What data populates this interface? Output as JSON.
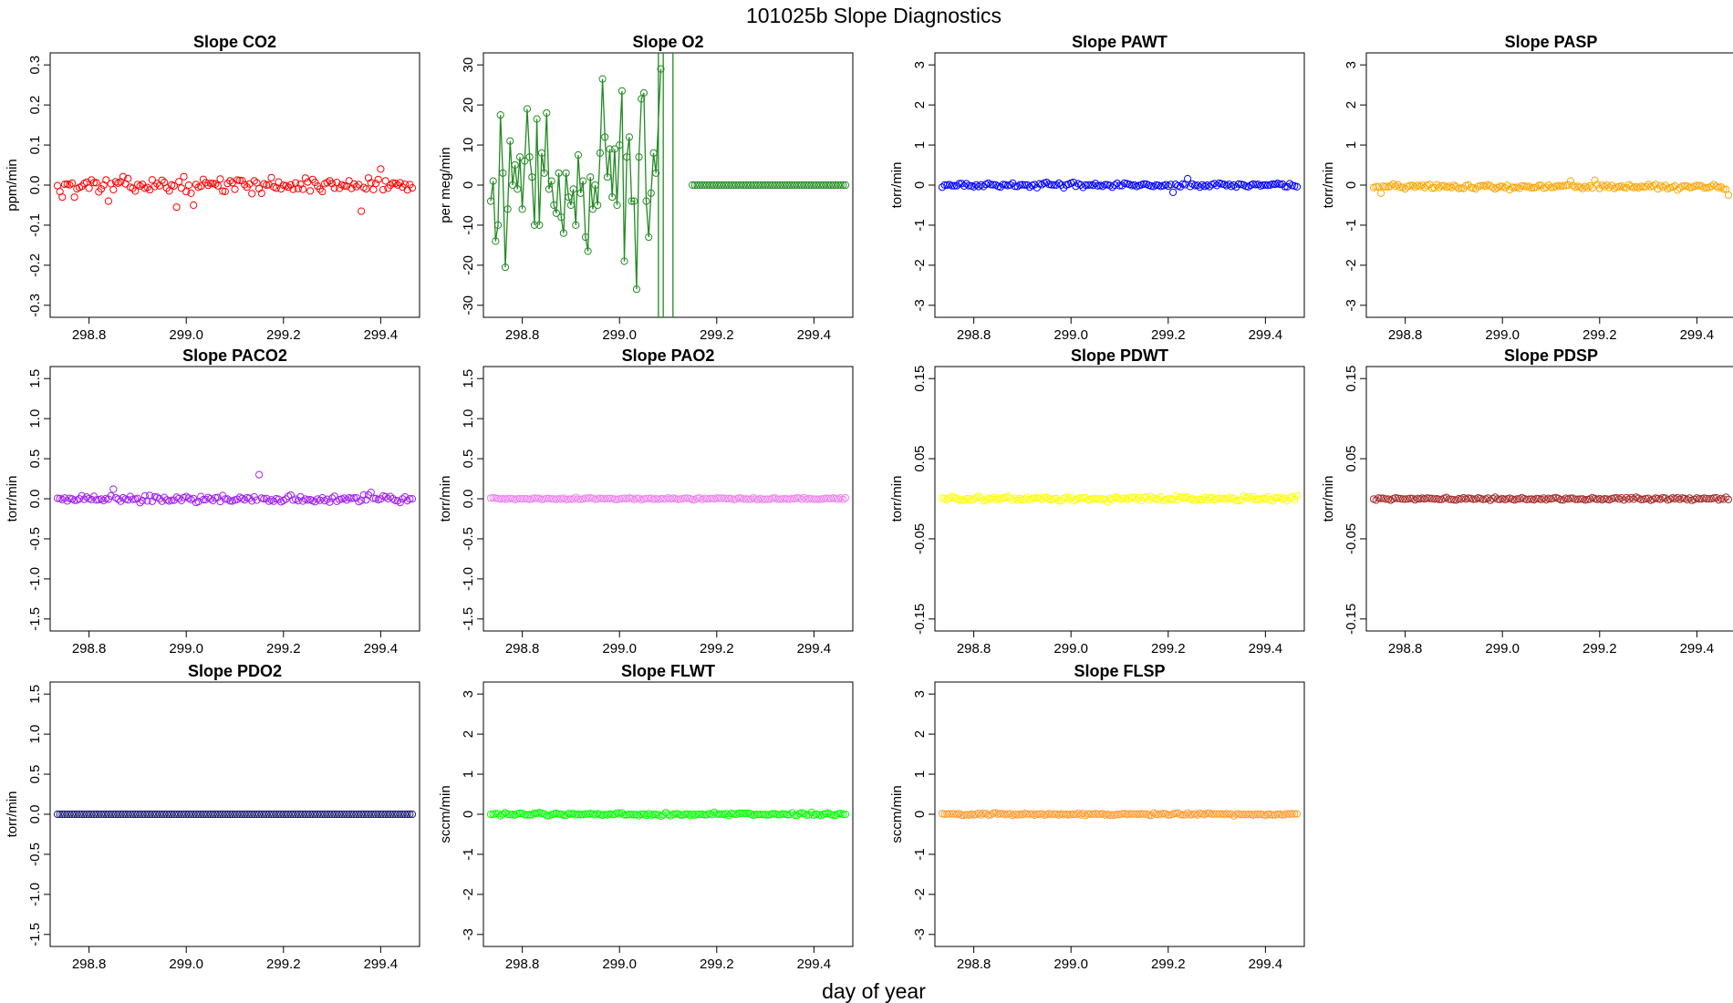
{
  "figure": {
    "title": "101025b   Slope Diagnostics",
    "xlabel": "day of year"
  },
  "chart_data": [
    {
      "type": "scatter",
      "title": "Slope CO2",
      "ylabel": "ppm/min",
      "color": "#ff0000",
      "xlim": [
        298.72,
        299.48
      ],
      "ylim": [
        -0.33,
        0.33
      ],
      "xticks": [
        298.8,
        299.0,
        299.2,
        299.4
      ],
      "xtick_labels": [
        "298.8",
        "299.0",
        "299.2",
        "299.4"
      ],
      "yticks": [
        -0.3,
        -0.2,
        -0.1,
        0.0,
        0.1,
        0.2,
        0.3
      ],
      "ytick_labels": [
        "-0.3",
        "-0.2",
        "-0.1",
        "0.0",
        "0.1",
        "0.2",
        "0.3"
      ],
      "x_start": 298.735,
      "x_step": 0.005,
      "center": 0.0,
      "noise": 0.014,
      "connect": false,
      "outliers": [
        {
          "x": 298.745,
          "y": -0.03
        },
        {
          "x": 298.77,
          "y": -0.03
        },
        {
          "x": 298.84,
          "y": -0.04
        },
        {
          "x": 298.98,
          "y": -0.055
        },
        {
          "x": 299.015,
          "y": -0.05
        },
        {
          "x": 299.36,
          "y": -0.065
        },
        {
          "x": 299.4,
          "y": 0.04
        }
      ]
    },
    {
      "type": "line+scatter",
      "title": "Slope O2",
      "ylabel": "per meg/min",
      "color": "#228b22",
      "xlim": [
        298.72,
        299.48
      ],
      "ylim": [
        -33,
        33
      ],
      "xticks": [
        298.8,
        299.0,
        299.2,
        299.4
      ],
      "xtick_labels": [
        "298.8",
        "299.0",
        "299.2",
        "299.4"
      ],
      "yticks": [
        -30,
        -20,
        -10,
        0,
        10,
        20,
        30
      ],
      "ytick_labels": [
        "-30",
        "-20",
        "-10",
        "0",
        "10",
        "20",
        "30"
      ],
      "x_start": 298.735,
      "x_step": 0.005,
      "center": 0.0,
      "noise": 0.0,
      "connect": true,
      "custom_points": [
        {
          "x": 298.735,
          "y": -4
        },
        {
          "x": 298.74,
          "y": 1
        },
        {
          "x": 298.745,
          "y": -14
        },
        {
          "x": 298.75,
          "y": -10
        },
        {
          "x": 298.755,
          "y": 17.5
        },
        {
          "x": 298.76,
          "y": 3
        },
        {
          "x": 298.765,
          "y": -20.5
        },
        {
          "x": 298.77,
          "y": -6
        },
        {
          "x": 298.775,
          "y": 11
        },
        {
          "x": 298.78,
          "y": 0
        },
        {
          "x": 298.785,
          "y": 5
        },
        {
          "x": 298.79,
          "y": -1
        },
        {
          "x": 298.795,
          "y": 7
        },
        {
          "x": 298.8,
          "y": -6
        },
        {
          "x": 298.805,
          "y": 6
        },
        {
          "x": 298.81,
          "y": 19
        },
        {
          "x": 298.815,
          "y": 7
        },
        {
          "x": 298.82,
          "y": 2
        },
        {
          "x": 298.825,
          "y": -10
        },
        {
          "x": 298.83,
          "y": 16.5
        },
        {
          "x": 298.835,
          "y": -10
        },
        {
          "x": 298.84,
          "y": 8
        },
        {
          "x": 298.845,
          "y": 3
        },
        {
          "x": 298.85,
          "y": 18
        },
        {
          "x": 298.855,
          "y": -1
        },
        {
          "x": 298.86,
          "y": 1
        },
        {
          "x": 298.865,
          "y": -5
        },
        {
          "x": 298.87,
          "y": -7
        },
        {
          "x": 298.875,
          "y": 3
        },
        {
          "x": 298.88,
          "y": -8
        },
        {
          "x": 298.885,
          "y": -12
        },
        {
          "x": 298.89,
          "y": 3
        },
        {
          "x": 298.895,
          "y": -3
        },
        {
          "x": 298.9,
          "y": -5
        },
        {
          "x": 298.905,
          "y": -1
        },
        {
          "x": 298.91,
          "y": -10
        },
        {
          "x": 298.915,
          "y": 7.5
        },
        {
          "x": 298.92,
          "y": -2
        },
        {
          "x": 298.925,
          "y": 1
        },
        {
          "x": 298.93,
          "y": -13
        },
        {
          "x": 298.935,
          "y": -16.5
        },
        {
          "x": 298.94,
          "y": 2
        },
        {
          "x": 298.945,
          "y": -6
        },
        {
          "x": 298.95,
          "y": 0
        },
        {
          "x": 298.955,
          "y": -5
        },
        {
          "x": 298.96,
          "y": 8
        },
        {
          "x": 298.965,
          "y": 26.5
        },
        {
          "x": 298.97,
          "y": 12
        },
        {
          "x": 298.975,
          "y": 2
        },
        {
          "x": 298.98,
          "y": 9
        },
        {
          "x": 298.985,
          "y": -3
        },
        {
          "x": 298.99,
          "y": 9
        },
        {
          "x": 298.995,
          "y": -5
        },
        {
          "x": 299.0,
          "y": 10
        },
        {
          "x": 299.005,
          "y": 23.5
        },
        {
          "x": 299.01,
          "y": -19
        },
        {
          "x": 299.015,
          "y": 7
        },
        {
          "x": 299.02,
          "y": 12
        },
        {
          "x": 299.025,
          "y": -4
        },
        {
          "x": 299.03,
          "y": -4
        },
        {
          "x": 299.035,
          "y": -26
        },
        {
          "x": 299.04,
          "y": 7
        },
        {
          "x": 299.045,
          "y": 21.5
        },
        {
          "x": 299.05,
          "y": 23
        },
        {
          "x": 299.055,
          "y": -4
        },
        {
          "x": 299.06,
          "y": -13
        },
        {
          "x": 299.065,
          "y": -2
        },
        {
          "x": 299.07,
          "y": 8
        },
        {
          "x": 299.075,
          "y": 3
        },
        {
          "x": 299.085,
          "y": 29
        }
      ],
      "extra_lines": [
        [
          299.08,
          -33,
          299.08,
          33
        ],
        [
          299.09,
          -33,
          299.09,
          33
        ],
        [
          299.11,
          -33,
          299.11,
          33
        ]
      ],
      "flat_from": 299.15,
      "flat_value": 0.0
    },
    {
      "type": "scatter",
      "title": "Slope PAWT",
      "ylabel": "torr/min",
      "color": "#0000ff",
      "xlim": [
        298.72,
        299.48
      ],
      "ylim": [
        -3.3,
        3.3
      ],
      "xticks": [
        298.8,
        299.0,
        299.2,
        299.4
      ],
      "xtick_labels": [
        "298.8",
        "299.0",
        "299.2",
        "299.4"
      ],
      "yticks": [
        -3,
        -2,
        -1,
        0,
        1,
        2,
        3
      ],
      "ytick_labels": [
        "-3",
        "-2",
        "-1",
        "0",
        "1",
        "2",
        "3"
      ],
      "x_start": 298.735,
      "x_step": 0.005,
      "center": 0.0,
      "noise": 0.045,
      "connect": false,
      "outliers": [
        {
          "x": 299.21,
          "y": -0.18
        },
        {
          "x": 299.24,
          "y": 0.16
        }
      ]
    },
    {
      "type": "scatter",
      "title": "Slope PASP",
      "ylabel": "torr/min",
      "color": "#ffa500",
      "xlim": [
        298.72,
        299.48
      ],
      "ylim": [
        -3.3,
        3.3
      ],
      "xticks": [
        298.8,
        299.0,
        299.2,
        299.4
      ],
      "xtick_labels": [
        "298.8",
        "299.0",
        "299.2",
        "299.4"
      ],
      "yticks": [
        -3,
        -2,
        -1,
        0,
        1,
        2,
        3
      ],
      "ytick_labels": [
        "-3",
        "-2",
        "-1",
        "0",
        "1",
        "2",
        "3"
      ],
      "x_start": 298.735,
      "x_step": 0.005,
      "center": -0.04,
      "noise": 0.05,
      "connect": false,
      "outliers": [
        {
          "x": 298.75,
          "y": -0.2
        },
        {
          "x": 299.14,
          "y": 0.1
        },
        {
          "x": 299.19,
          "y": 0.12
        },
        {
          "x": 299.465,
          "y": -0.25
        }
      ]
    },
    {
      "type": "scatter",
      "title": "Slope PACO2",
      "ylabel": "torr/min",
      "color": "#a020f0",
      "xlim": [
        298.72,
        299.48
      ],
      "ylim": [
        -1.65,
        1.65
      ],
      "xticks": [
        298.8,
        299.0,
        299.2,
        299.4
      ],
      "xtick_labels": [
        "298.8",
        "299.0",
        "299.2",
        "299.4"
      ],
      "yticks": [
        -1.5,
        -1.0,
        -0.5,
        0.0,
        0.5,
        1.0,
        1.5
      ],
      "ytick_labels": [
        "-1.5",
        "-1.0",
        "-0.5",
        "0.0",
        "0.5",
        "1.0",
        "1.5"
      ],
      "x_start": 298.735,
      "x_step": 0.005,
      "center": 0.0,
      "noise": 0.035,
      "connect": false,
      "outliers": [
        {
          "x": 299.15,
          "y": 0.3
        },
        {
          "x": 298.85,
          "y": 0.12
        },
        {
          "x": 299.38,
          "y": 0.08
        }
      ]
    },
    {
      "type": "scatter",
      "title": "Slope PAO2",
      "ylabel": "torr/min",
      "color": "#ee82ee",
      "xlim": [
        298.72,
        299.48
      ],
      "ylim": [
        -1.65,
        1.65
      ],
      "xticks": [
        298.8,
        299.0,
        299.2,
        299.4
      ],
      "xtick_labels": [
        "298.8",
        "299.0",
        "299.2",
        "299.4"
      ],
      "yticks": [
        -1.5,
        -1.0,
        -0.5,
        0.0,
        0.5,
        1.0,
        1.5
      ],
      "ytick_labels": [
        "-1.5",
        "-1.0",
        "-0.5",
        "0.0",
        "0.5",
        "1.0",
        "1.5"
      ],
      "x_start": 298.735,
      "x_step": 0.005,
      "center": 0.0,
      "noise": 0.01,
      "connect": false,
      "outliers": []
    },
    {
      "type": "scatter",
      "title": "Slope PDWT",
      "ylabel": "torr/min",
      "color": "#ffff00",
      "xlim": [
        298.72,
        299.48
      ],
      "ylim": [
        -0.165,
        0.165
      ],
      "xticks": [
        298.8,
        299.0,
        299.2,
        299.4
      ],
      "xtick_labels": [
        "298.8",
        "299.0",
        "299.2",
        "299.4"
      ],
      "yticks": [
        -0.15,
        -0.05,
        0.05,
        0.15
      ],
      "ytick_labels": [
        "-0.15",
        "-0.05",
        "0.05",
        "0.15"
      ],
      "x_start": 298.735,
      "x_step": 0.005,
      "center": 0.0,
      "noise": 0.0025,
      "connect": false,
      "outliers": []
    },
    {
      "type": "scatter",
      "title": "Slope PDSP",
      "ylabel": "torr/min",
      "color": "#a52a2a",
      "xlim": [
        298.72,
        299.48
      ],
      "ylim": [
        -0.165,
        0.165
      ],
      "xticks": [
        298.8,
        299.0,
        299.2,
        299.4
      ],
      "xtick_labels": [
        "298.8",
        "299.0",
        "299.2",
        "299.4"
      ],
      "yticks": [
        -0.15,
        -0.05,
        0.05,
        0.15
      ],
      "ytick_labels": [
        "-0.15",
        "-0.05",
        "0.05",
        "0.15"
      ],
      "x_start": 298.735,
      "x_step": 0.005,
      "center": 0.0,
      "noise": 0.0015,
      "connect": false,
      "outliers": []
    },
    {
      "type": "scatter",
      "title": "Slope PDO2",
      "ylabel": "torr/min",
      "color": "#191970",
      "xlim": [
        298.72,
        299.48
      ],
      "ylim": [
        -1.65,
        1.65
      ],
      "xticks": [
        298.8,
        299.0,
        299.2,
        299.4
      ],
      "xtick_labels": [
        "298.8",
        "299.0",
        "299.2",
        "299.4"
      ],
      "yticks": [
        -1.5,
        -1.0,
        -0.5,
        0.0,
        0.5,
        1.0,
        1.5
      ],
      "ytick_labels": [
        "-1.5",
        "-1.0",
        "-0.5",
        "0.0",
        "0.5",
        "1.0",
        "1.5"
      ],
      "x_start": 298.735,
      "x_step": 0.005,
      "center": 0.0,
      "noise": 0.0,
      "connect": false,
      "outliers": []
    },
    {
      "type": "scatter",
      "title": "Slope FLWT",
      "ylabel": "sccm/min",
      "color": "#00ff00",
      "xlim": [
        298.72,
        299.48
      ],
      "ylim": [
        -3.3,
        3.3
      ],
      "xticks": [
        298.8,
        299.0,
        299.2,
        299.4
      ],
      "xtick_labels": [
        "298.8",
        "299.0",
        "299.2",
        "299.4"
      ],
      "yticks": [
        -3,
        -2,
        -1,
        0,
        1,
        2,
        3
      ],
      "ytick_labels": [
        "-3",
        "-2",
        "-1",
        "0",
        "1",
        "2",
        "3"
      ],
      "x_start": 298.735,
      "x_step": 0.005,
      "center": 0.0,
      "noise": 0.03,
      "connect": false,
      "outliers": []
    },
    {
      "type": "scatter",
      "title": "Slope FLSP",
      "ylabel": "sccm/min",
      "color": "#ff9a2e",
      "xlim": [
        298.72,
        299.48
      ],
      "ylim": [
        -3.3,
        3.3
      ],
      "xticks": [
        298.8,
        299.0,
        299.2,
        299.4
      ],
      "xtick_labels": [
        "298.8",
        "299.0",
        "299.2",
        "299.4"
      ],
      "yticks": [
        -3,
        -2,
        -1,
        0,
        1,
        2,
        3
      ],
      "ytick_labels": [
        "-3",
        "-2",
        "-1",
        "0",
        "1",
        "2",
        "3"
      ],
      "x_start": 298.735,
      "x_step": 0.005,
      "center": 0.0,
      "noise": 0.025,
      "connect": false,
      "outliers": []
    }
  ]
}
